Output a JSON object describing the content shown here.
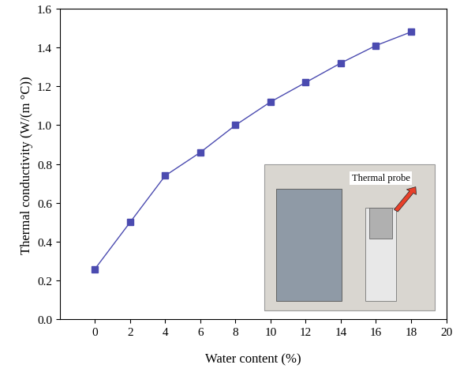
{
  "chart_data": {
    "type": "line",
    "x_label": "Water content (%)",
    "y_label": "Thermal conductivity (W/(m °C))",
    "x": [
      0,
      2,
      4,
      6,
      8,
      10,
      12,
      14,
      16,
      18
    ],
    "values": [
      0.26,
      0.5,
      0.74,
      0.86,
      1.0,
      1.12,
      1.22,
      1.32,
      1.41,
      1.48
    ],
    "color": "#4b4bb0",
    "marker": "square",
    "line_style": "solid",
    "xlim": [
      -2,
      20
    ],
    "xticks": [
      0,
      2,
      4,
      6,
      8,
      10,
      12,
      14,
      16,
      18,
      20
    ],
    "ylim": [
      0,
      1.6
    ],
    "yticks": [
      {
        "value": 0,
        "label": "0.0"
      },
      {
        "value": 0.2,
        "label": "0.2"
      },
      {
        "value": 0.4,
        "label": "0.4"
      },
      {
        "value": 0.6,
        "label": "0.6"
      },
      {
        "value": 0.8,
        "label": "0.8"
      },
      {
        "value": 1.0,
        "label": "1.0"
      },
      {
        "value": 1.2,
        "label": "1.2"
      },
      {
        "value": 1.4,
        "label": "1.4"
      },
      {
        "value": 1.6,
        "label": "1.6"
      }
    ],
    "annotations": [
      "Thermal probe"
    ],
    "grid": false
  }
}
